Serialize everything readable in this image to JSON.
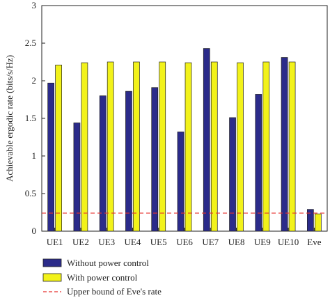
{
  "chart_data": {
    "type": "bar",
    "title": "",
    "xlabel": "",
    "ylabel": "Achievable ergodic rate (bits/s/Hz)",
    "ylim": [
      0,
      3
    ],
    "yticks": [
      "0",
      "0.5",
      "1",
      "1.5",
      "2",
      "2.5",
      "3"
    ],
    "categories": [
      "UE1",
      "UE2",
      "UE3",
      "UE4",
      "UE5",
      "UE6",
      "UE7",
      "UE8",
      "UE9",
      "UE10",
      "Eve"
    ],
    "series": [
      {
        "name": "Without power control",
        "color": "#2b2b8a",
        "values": [
          1.97,
          1.44,
          1.8,
          1.86,
          1.91,
          1.32,
          2.43,
          1.51,
          1.82,
          2.31,
          0.29
        ]
      },
      {
        "name": "With power control",
        "color": "#f2f21a",
        "values": [
          2.21,
          2.24,
          2.25,
          2.25,
          2.25,
          2.24,
          2.25,
          2.24,
          2.25,
          2.25,
          0.23
        ]
      }
    ],
    "reference_line": {
      "name": "Upper bound of Eve's rate",
      "value": 0.24,
      "color": "#e8322f",
      "style": "dashed"
    },
    "grid": false,
    "legend_position": "bottom-left below plot"
  }
}
